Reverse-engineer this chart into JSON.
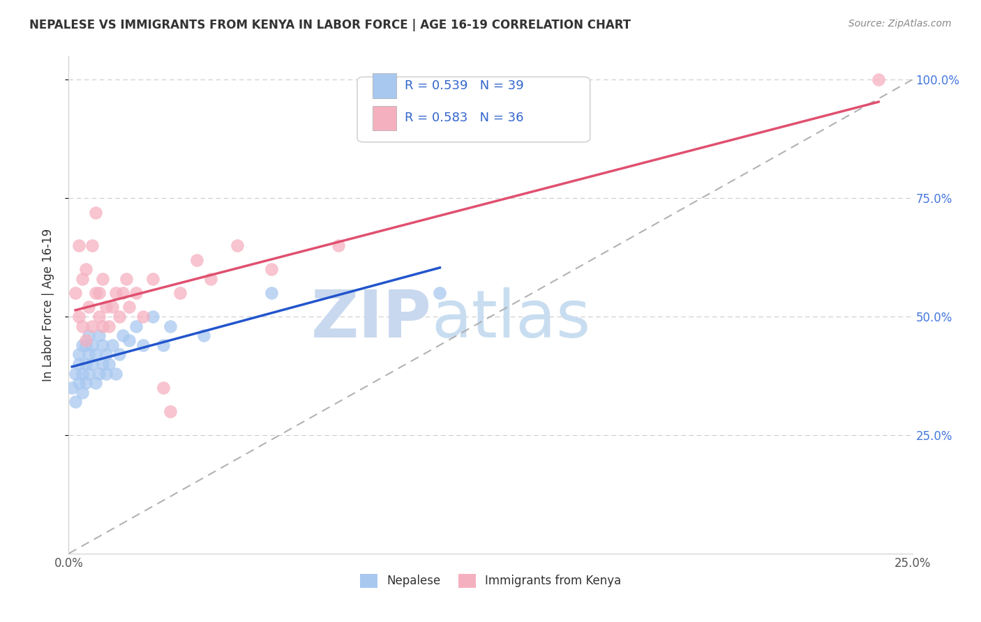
{
  "title": "NEPALESE VS IMMIGRANTS FROM KENYA IN LABOR FORCE | AGE 16-19 CORRELATION CHART",
  "source": "Source: ZipAtlas.com",
  "ylabel": "In Labor Force | Age 16-19",
  "xlim": [
    0.0,
    0.25
  ],
  "ylim": [
    0.0,
    1.05
  ],
  "legend_R1": "R = 0.539",
  "legend_N1": "N = 39",
  "legend_R2": "R = 0.583",
  "legend_N2": "N = 36",
  "nepalese_color": "#a8c8f0",
  "kenya_color": "#f5b0c0",
  "nepalese_line_color": "#2255cc",
  "kenya_line_color": "#e05070",
  "grid_color": "#cccccc",
  "background_color": "#ffffff",
  "nepalese_x": [
    0.001,
    0.002,
    0.002,
    0.003,
    0.003,
    0.003,
    0.004,
    0.004,
    0.004,
    0.005,
    0.005,
    0.005,
    0.006,
    0.006,
    0.006,
    0.007,
    0.007,
    0.008,
    0.008,
    0.009,
    0.009,
    0.01,
    0.01,
    0.011,
    0.011,
    0.012,
    0.013,
    0.014,
    0.015,
    0.016,
    0.018,
    0.02,
    0.022,
    0.025,
    0.028,
    0.03,
    0.04,
    0.06,
    0.11
  ],
  "nepalese_y": [
    0.35,
    0.38,
    0.32,
    0.4,
    0.36,
    0.42,
    0.38,
    0.34,
    0.44,
    0.4,
    0.36,
    0.44,
    0.38,
    0.42,
    0.46,
    0.4,
    0.44,
    0.36,
    0.42,
    0.38,
    0.46,
    0.4,
    0.44,
    0.38,
    0.42,
    0.4,
    0.44,
    0.38,
    0.42,
    0.46,
    0.45,
    0.48,
    0.44,
    0.5,
    0.44,
    0.48,
    0.46,
    0.55,
    0.55
  ],
  "kenya_x": [
    0.002,
    0.003,
    0.003,
    0.004,
    0.004,
    0.005,
    0.005,
    0.006,
    0.007,
    0.007,
    0.008,
    0.008,
    0.009,
    0.009,
    0.01,
    0.01,
    0.011,
    0.012,
    0.013,
    0.014,
    0.015,
    0.016,
    0.017,
    0.018,
    0.02,
    0.022,
    0.025,
    0.028,
    0.03,
    0.033,
    0.038,
    0.042,
    0.05,
    0.06,
    0.08,
    0.24
  ],
  "kenya_y": [
    0.55,
    0.5,
    0.65,
    0.48,
    0.58,
    0.45,
    0.6,
    0.52,
    0.48,
    0.65,
    0.55,
    0.72,
    0.55,
    0.5,
    0.48,
    0.58,
    0.52,
    0.48,
    0.52,
    0.55,
    0.5,
    0.55,
    0.58,
    0.52,
    0.55,
    0.5,
    0.58,
    0.35,
    0.3,
    0.55,
    0.62,
    0.58,
    0.65,
    0.6,
    0.65,
    1.0
  ],
  "watermark_zip": "ZIP",
  "watermark_atlas": "atlas"
}
